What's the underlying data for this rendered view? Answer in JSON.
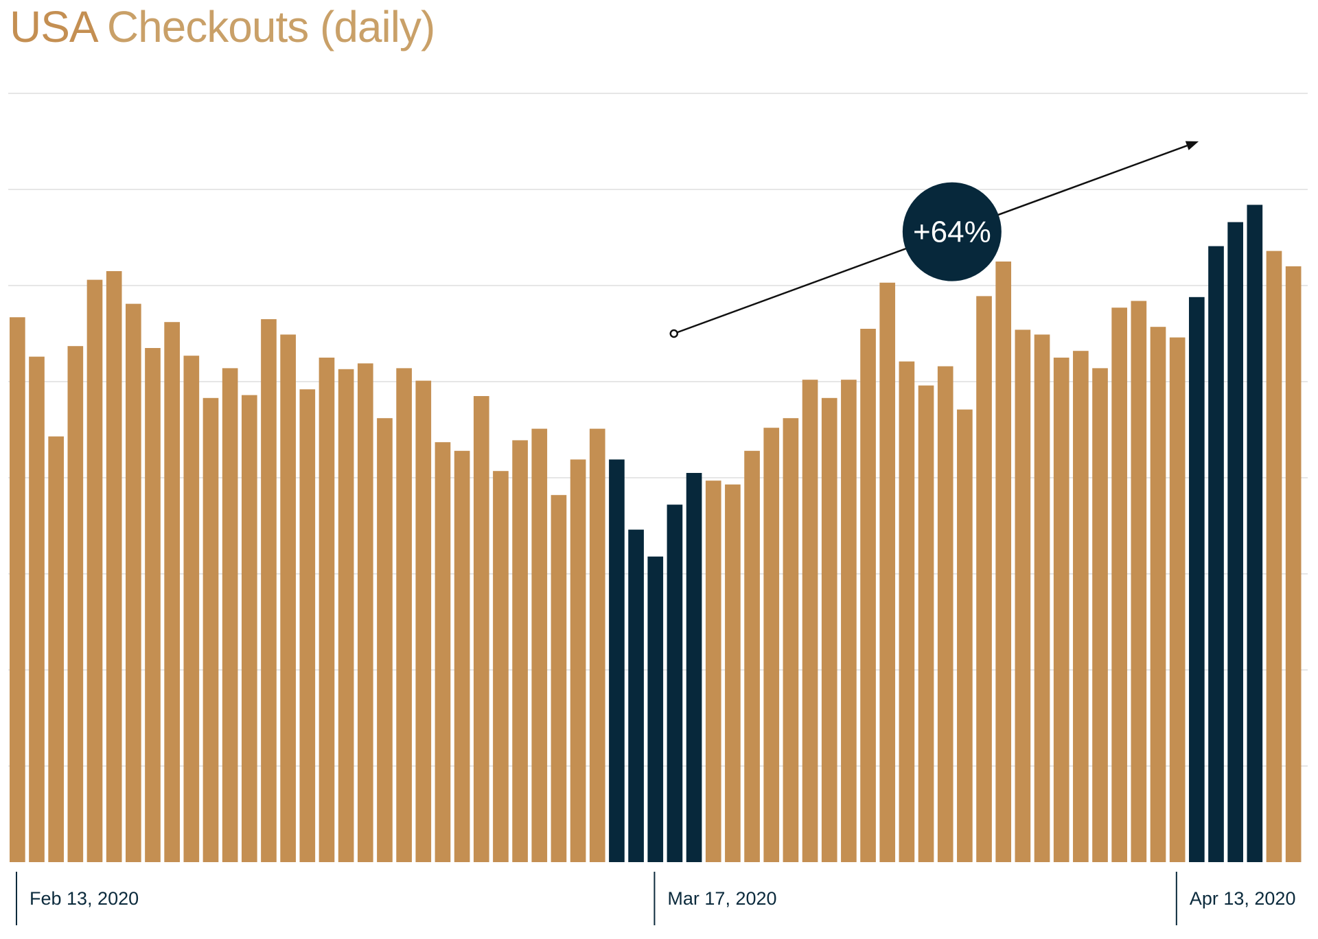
{
  "chart_data": {
    "type": "bar",
    "title_strong": "USA",
    "title_rest": "Checkouts (daily)",
    "xlabel": "",
    "ylabel": "",
    "x_ticks": [
      {
        "label": "Feb 13, 2020",
        "index": 0
      },
      {
        "label": "Mar 17, 2020",
        "index": 33
      },
      {
        "label": "Apr 13, 2020",
        "index": 60
      }
    ],
    "ylim": [
      0,
      8
    ],
    "grid": true,
    "values": [
      5.67,
      5.26,
      4.43,
      5.37,
      6.06,
      6.15,
      5.81,
      5.35,
      5.62,
      5.27,
      4.83,
      5.14,
      4.86,
      5.65,
      5.49,
      4.92,
      5.25,
      5.13,
      5.19,
      4.62,
      5.14,
      5.01,
      4.37,
      4.28,
      4.85,
      4.07,
      4.39,
      4.51,
      3.82,
      4.19,
      4.51,
      4.19,
      3.46,
      3.18,
      3.72,
      4.05,
      3.97,
      3.93,
      4.28,
      4.52,
      4.62,
      5.02,
      4.83,
      5.02,
      5.55,
      6.03,
      5.21,
      4.96,
      5.16,
      4.71,
      5.89,
      6.25,
      5.54,
      5.49,
      5.25,
      5.32,
      5.14,
      5.77,
      5.84,
      5.57,
      5.46,
      5.88,
      6.41,
      6.66,
      6.84,
      6.36,
      6.2
    ],
    "highlighted_indices": [
      31,
      32,
      33,
      34,
      35,
      61,
      62,
      63,
      64
    ],
    "colors": {
      "base": "#c48f52",
      "highlight": "#07283b",
      "grid": "#e6e6e6",
      "axis": "#0b2a3c"
    },
    "annotation": {
      "label": "+64%",
      "from_index": 33,
      "from_value": 5.5,
      "to_index": 61.5,
      "to_value": 7.5
    }
  }
}
